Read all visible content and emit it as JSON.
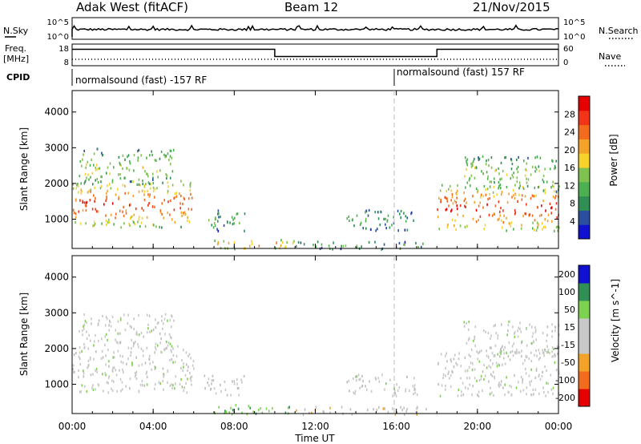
{
  "header": {
    "station": "Adak West (fitACF)",
    "beam": "Beam 12",
    "date": "21/Nov/2015"
  },
  "colors": {
    "scale": [
      "#1010d0",
      "#2a4fa0",
      "#2f8f55",
      "#4caf50",
      "#7fc24f",
      "#f7d22a",
      "#f4a32a",
      "#f36b1d",
      "#f23518",
      "#e60000"
    ]
  },
  "nsky_panel": {
    "left_label": "N.Sky",
    "right_label": "N.Search",
    "left_ticks": [
      "10^5",
      "10^0"
    ],
    "right_ticks": [
      "10^5",
      "10^0"
    ]
  },
  "freq_panel": {
    "left_label_1": "Freq.",
    "left_label_2": "[MHz]",
    "right_label": "Nave",
    "left_ticks": [
      "18",
      "8"
    ],
    "right_ticks": [
      "60",
      "0"
    ],
    "freq_steps": [
      {
        "t0": 0,
        "t1": 10,
        "level": 0.78
      },
      {
        "t0": 10,
        "t1": 18,
        "level": 0.42
      },
      {
        "t0": 18,
        "t1": 24,
        "level": 0.78
      }
    ]
  },
  "cpid_panel": {
    "label": "CPID",
    "left_text": "normalsound (fast) -157 RF",
    "right_text": "normalsound (fast) 157 RF",
    "switch_hour": 16
  },
  "power_panel": {
    "ylabel": "Slant Range [km]",
    "yticks": [
      "4000",
      "3000",
      "2000",
      "1000"
    ],
    "colorbar_label": "Power [dB]",
    "colorbar_ticks": [
      "28",
      "24",
      "20",
      "16",
      "12",
      "8",
      "4"
    ]
  },
  "velocity_panel": {
    "ylabel": "Slant Range [km]",
    "yticks": [
      "4000",
      "3000",
      "2000",
      "1000"
    ],
    "colorbar_label": "Velocity [m s^-1]",
    "colorbar_ticks": [
      "200",
      "100",
      "50",
      "15",
      "-15",
      "-50",
      "-100",
      "-200"
    ]
  },
  "xaxis": {
    "label": "Time UT",
    "ticks": [
      "00:00",
      "04:00",
      "08:00",
      "12:00",
      "16:00",
      "20:00",
      "00:00"
    ]
  },
  "chart_data": {
    "type": "heatmap",
    "title": "Adak West (fitACF) Beam 12 21/Nov/2015",
    "xlabel": "Time UT",
    "ylabel": "Slant Range [km]",
    "xlim": [
      "00:00",
      "24:00"
    ],
    "ylim": [
      180,
      4600
    ],
    "power_colorbar_range_db": [
      0,
      32
    ],
    "velocity_colorbar_range_ms": [
      -250,
      250
    ],
    "echo_regions": [
      {
        "t0": 0.0,
        "t1": 6.0,
        "r0": 800,
        "r1": 2100,
        "power_db": 24,
        "velocity_ms": 0
      },
      {
        "t0": 0.3,
        "t1": 5.0,
        "r0": 2000,
        "r1": 3000,
        "power_db": 14,
        "velocity_ms": 0
      },
      {
        "t0": 6.5,
        "t1": 8.5,
        "r0": 700,
        "r1": 1300,
        "power_db": 10,
        "velocity_ms": -10
      },
      {
        "t0": 7.0,
        "t1": 11.0,
        "r0": 180,
        "r1": 450,
        "power_db": 22,
        "velocity_ms": 40
      },
      {
        "t0": 11.0,
        "t1": 17.5,
        "r0": 180,
        "r1": 400,
        "power_db": 10,
        "velocity_ms": -40
      },
      {
        "t0": 13.5,
        "t1": 17.0,
        "r0": 700,
        "r1": 1300,
        "power_db": 9,
        "velocity_ms": 0
      },
      {
        "t0": 18.0,
        "t1": 24.0,
        "r0": 700,
        "r1": 2000,
        "power_db": 25,
        "velocity_ms": 0
      },
      {
        "t0": 19.3,
        "t1": 24.0,
        "r0": 1800,
        "r1": 2800,
        "power_db": 13,
        "velocity_ms": 0
      }
    ]
  }
}
